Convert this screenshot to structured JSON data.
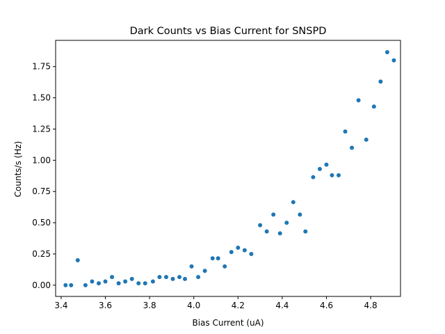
{
  "chart_data": {
    "type": "scatter",
    "title": "Dark Counts vs Bias Current for SNSPD",
    "xlabel": "Bias Current (uA)",
    "ylabel": "Counts/s (Hz)",
    "xlim": [
      3.375,
      4.935
    ],
    "ylim": [
      -0.09,
      1.96
    ],
    "xticks": [
      3.4,
      3.6,
      3.8,
      4.0,
      4.2,
      4.4,
      4.6,
      4.8
    ],
    "xtick_labels": [
      "3.4",
      "3.6",
      "3.8",
      "4.0",
      "4.2",
      "4.4",
      "4.6",
      "4.8"
    ],
    "yticks": [
      0.0,
      0.25,
      0.5,
      0.75,
      1.0,
      1.25,
      1.5,
      1.75
    ],
    "ytick_labels": [
      "0.00",
      "0.25",
      "0.50",
      "0.75",
      "1.00",
      "1.25",
      "1.50",
      "1.75"
    ],
    "grid": false,
    "marker_color": "#1f77b4",
    "series": [
      {
        "points": [
          [
            3.42,
            0.0
          ],
          [
            3.445,
            0.0
          ],
          [
            3.475,
            0.2
          ],
          [
            3.51,
            0.0
          ],
          [
            3.54,
            0.03
          ],
          [
            3.57,
            0.015
          ],
          [
            3.6,
            0.03
          ],
          [
            3.63,
            0.065
          ],
          [
            3.66,
            0.015
          ],
          [
            3.69,
            0.03
          ],
          [
            3.72,
            0.05
          ],
          [
            3.75,
            0.015
          ],
          [
            3.78,
            0.015
          ],
          [
            3.815,
            0.03
          ],
          [
            3.845,
            0.065
          ],
          [
            3.875,
            0.065
          ],
          [
            3.905,
            0.05
          ],
          [
            3.935,
            0.065
          ],
          [
            3.96,
            0.05
          ],
          [
            3.99,
            0.15
          ],
          [
            4.02,
            0.065
          ],
          [
            4.05,
            0.115
          ],
          [
            4.085,
            0.215
          ],
          [
            4.11,
            0.215
          ],
          [
            4.14,
            0.15
          ],
          [
            4.17,
            0.265
          ],
          [
            4.2,
            0.3
          ],
          [
            4.23,
            0.28
          ],
          [
            4.26,
            0.25
          ],
          [
            4.3,
            0.48
          ],
          [
            4.33,
            0.43
          ],
          [
            4.36,
            0.565
          ],
          [
            4.39,
            0.415
          ],
          [
            4.42,
            0.5
          ],
          [
            4.45,
            0.665
          ],
          [
            4.48,
            0.565
          ],
          [
            4.505,
            0.43
          ],
          [
            4.54,
            0.865
          ],
          [
            4.57,
            0.93
          ],
          [
            4.6,
            0.965
          ],
          [
            4.625,
            0.88
          ],
          [
            4.655,
            0.88
          ],
          [
            4.685,
            1.23
          ],
          [
            4.715,
            1.1
          ],
          [
            4.745,
            1.48
          ],
          [
            4.78,
            1.165
          ],
          [
            4.815,
            1.43
          ],
          [
            4.845,
            1.63
          ],
          [
            4.875,
            1.865
          ],
          [
            4.905,
            1.8
          ]
        ]
      }
    ]
  }
}
